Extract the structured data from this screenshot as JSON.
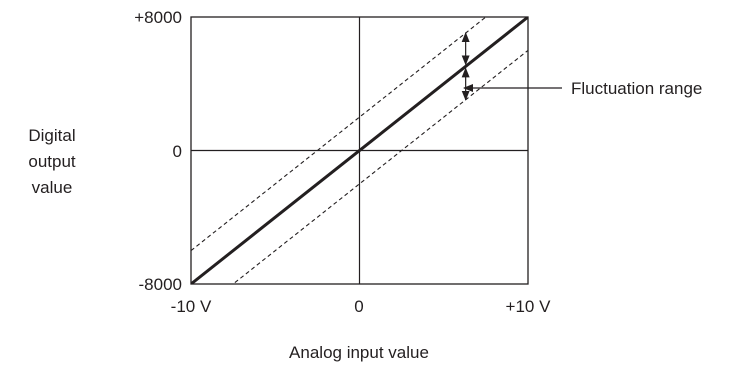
{
  "chart_data": {
    "type": "line",
    "xlabel": "Analog input value",
    "ylabel": [
      "Digital",
      "output",
      "value"
    ],
    "x_tick_labels": [
      "-10 V",
      "0",
      "+10 V"
    ],
    "y_tick_labels": [
      "+8000",
      "0",
      "-8000"
    ],
    "xlim": [
      -10,
      10
    ],
    "ylim": [
      -8000,
      8000
    ],
    "grid_cross_at_zero": true,
    "series": [
      {
        "style": "solid-bold",
        "x": [
          -10,
          10
        ],
        "y": [
          -8000,
          8000
        ]
      },
      {
        "style": "dashed",
        "x": [
          -10,
          10
        ],
        "y": [
          -6000,
          10000
        ]
      },
      {
        "style": "dashed",
        "x": [
          -10,
          10
        ],
        "y": [
          -10000,
          6000
        ]
      }
    ],
    "annotation": {
      "text": "Fluctuation range",
      "x": 6.3
    }
  }
}
